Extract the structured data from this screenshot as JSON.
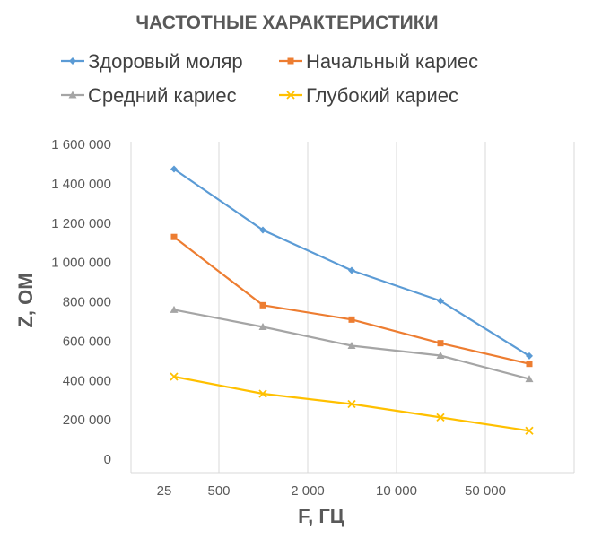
{
  "chart_data": {
    "type": "line",
    "title": "ЧАСТОТНЫЕ ХАРАКТЕРИСТИКИ",
    "xlabel": "F, ГЦ",
    "ylabel": "Z, ОМ",
    "categories": [
      "25",
      "500",
      "2 000",
      "10 000",
      "50 000"
    ],
    "ylim": [
      0,
      1600000
    ],
    "yticks": [
      0,
      200000,
      400000,
      600000,
      800000,
      1000000,
      1200000,
      1400000,
      1600000
    ],
    "ytick_labels": [
      "0",
      "200 000",
      "400 000",
      "600 000",
      "800 000",
      "1 000 000",
      "1 200 000",
      "1 400 000",
      "1 600 000"
    ],
    "grid": "vertical",
    "legend_position": "top",
    "series": [
      {
        "name": "Здоровый моляр",
        "color": "#5b9bd5",
        "marker": "diamond",
        "values": [
          1470000,
          1160000,
          955000,
          800000,
          520000
        ]
      },
      {
        "name": "Начальный кариес",
        "color": "#ed7d31",
        "marker": "square",
        "values": [
          1125000,
          778000,
          705000,
          585000,
          480000
        ]
      },
      {
        "name": "Средний кариес",
        "color": "#a5a5a5",
        "marker": "triangle",
        "values": [
          755000,
          668000,
          572000,
          522000,
          403000
        ]
      },
      {
        "name": "Глубокий кариес",
        "color": "#ffc000",
        "marker": "cross",
        "values": [
          415000,
          328000,
          276000,
          208000,
          140000
        ]
      }
    ]
  }
}
